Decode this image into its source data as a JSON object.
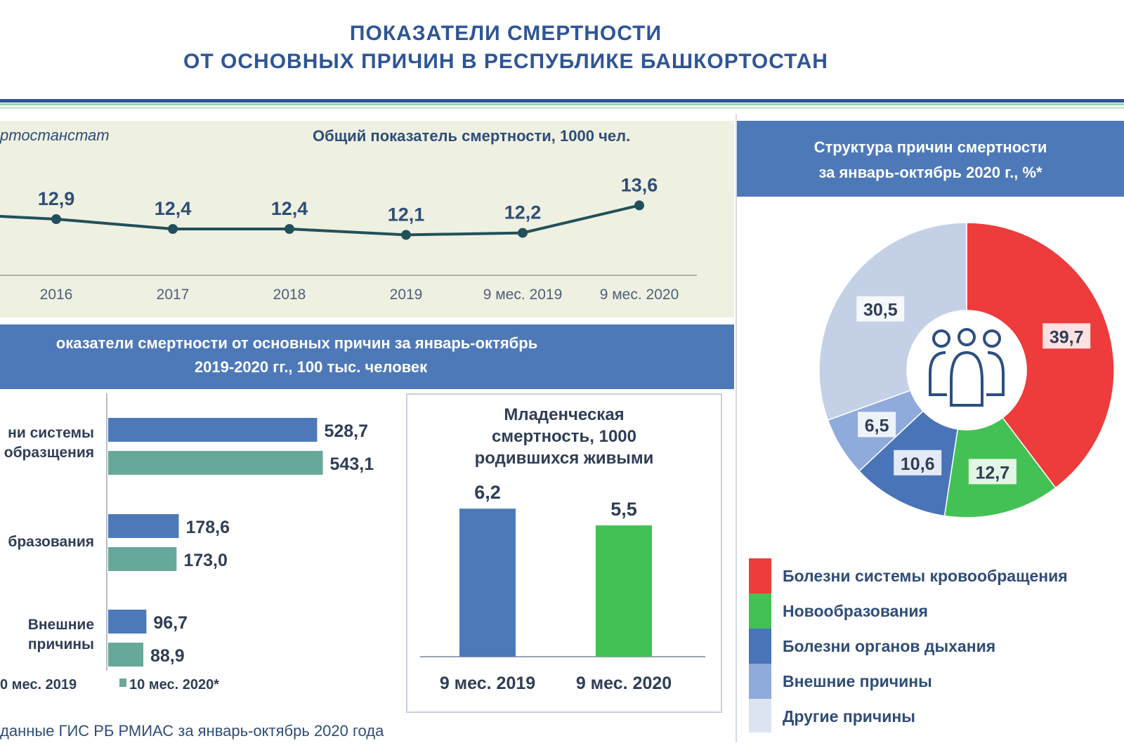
{
  "title": {
    "line1": "ПОКАЗАТЕЛИ СМЕРТНОСТИ",
    "line2": "ОТ ОСНОВНЫХ ПРИЧИН В РЕСПУБЛИКЕ БАШКОРТОСТАН"
  },
  "source_top": "ртостанстат",
  "footnote": "данные ГИС РБ РМИАС за январь-октябрь 2020 года",
  "colors": {
    "accent_blue": "#4e79b9",
    "teal": "#68a89a",
    "red": "#ee3b3b",
    "green": "#44c154",
    "light_blue": "#8fabdb",
    "very_light_blue": "#c4d0e6",
    "line": "#22505a"
  },
  "chart_data": [
    {
      "type": "line",
      "title": "Общий показатель смертности, 1000 чел.",
      "categories": [
        "2016",
        "2017",
        "2018",
        "2019",
        "9 мес. 2019",
        "9 мес. 2020"
      ],
      "values": [
        12.9,
        12.4,
        12.4,
        12.1,
        12.2,
        13.6
      ],
      "labels": [
        "12,9",
        "12,4",
        "12,4",
        "12,1",
        "12,2",
        "13,6"
      ],
      "note": "line continues off the left edge from an earlier year"
    },
    {
      "type": "bar",
      "orientation": "horizontal",
      "title_line1": "оказатели смертности от основных причин за январь-октябрь",
      "title_line2": "2019-2020 гг., 100 тыс. человек",
      "categories": [
        {
          "line1": "ни системы",
          "line2": "образщения"
        },
        {
          "line1": "",
          "line2": "бразования"
        },
        {
          "line1": "Внешние",
          "line2": "причины"
        }
      ],
      "series": [
        {
          "name": "0 мес. 2019",
          "values": [
            528.7,
            178.6,
            96.7
          ],
          "labels": [
            "528,7",
            "178,6",
            "96,7"
          ]
        },
        {
          "name": "10 мес. 2020*",
          "values": [
            543.1,
            173.0,
            88.9
          ],
          "labels": [
            "543,1",
            "173,0",
            "88,9"
          ]
        }
      ],
      "legend_placement": "bottom"
    },
    {
      "type": "bar",
      "title_lines": [
        "Младенческая",
        "смертность, 1000",
        "родившихся живыми"
      ],
      "categories": [
        "9 мес. 2019",
        "9 мес. 2020"
      ],
      "values": [
        6.2,
        5.5
      ],
      "labels": [
        "6,2",
        "5,5"
      ]
    },
    {
      "type": "pie",
      "style": "donut",
      "title_line1": "Структура причин смертности",
      "title_line2": "за январь-октябрь 2020 г., %*",
      "center_icon": "people-group-icon",
      "slices": [
        {
          "name": "Болезни системы кровообращения",
          "value": 39.7,
          "label": "39,7",
          "color": "#ee3b3b"
        },
        {
          "name": "Новообразования",
          "value": 12.7,
          "label": "12,7",
          "color": "#44c154"
        },
        {
          "name": "Болезни органов дыхания",
          "value": 10.6,
          "label": "10,6",
          "color": "#4a74b8"
        },
        {
          "name": "Внешние причины",
          "value": 6.5,
          "label": "6,5",
          "color": "#8fabdb"
        },
        {
          "name": "Другие причины",
          "value": 30.5,
          "label": "30,5",
          "color": "#c4d0e6"
        }
      ],
      "legend_placement": "bottom"
    }
  ]
}
